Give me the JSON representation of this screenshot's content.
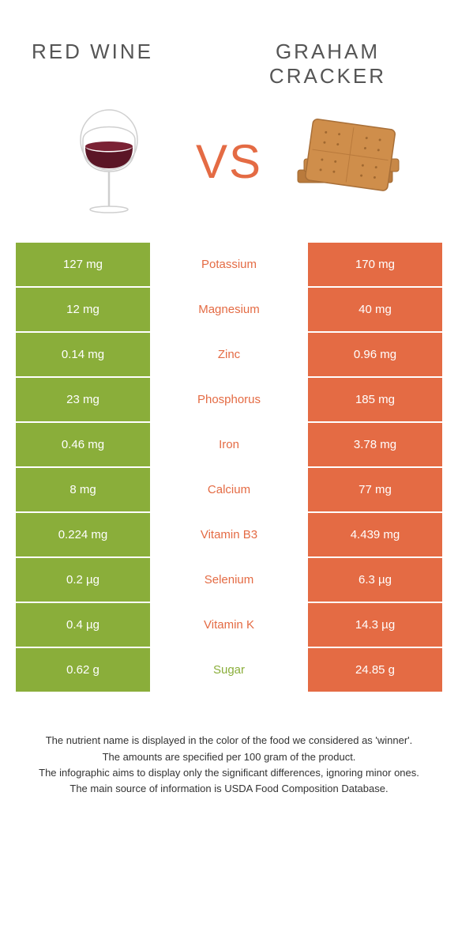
{
  "colors": {
    "left": "#8aae3a",
    "right": "#e46b44",
    "left_text": "#8aae3a",
    "right_text": "#e46b44",
    "vs_color": "#e46b44",
    "white": "#ffffff"
  },
  "titles": {
    "left": "Red Wine",
    "right_line1": "Graham",
    "right_line2": "Cracker"
  },
  "vs": "VS",
  "rows": [
    {
      "left": "127 mg",
      "label": "Potassium",
      "right": "170 mg",
      "winner": "right"
    },
    {
      "left": "12 mg",
      "label": "Magnesium",
      "right": "40 mg",
      "winner": "right"
    },
    {
      "left": "0.14 mg",
      "label": "Zinc",
      "right": "0.96 mg",
      "winner": "right"
    },
    {
      "left": "23 mg",
      "label": "Phosphorus",
      "right": "185 mg",
      "winner": "right"
    },
    {
      "left": "0.46 mg",
      "label": "Iron",
      "right": "3.78 mg",
      "winner": "right"
    },
    {
      "left": "8 mg",
      "label": "Calcium",
      "right": "77 mg",
      "winner": "right"
    },
    {
      "left": "0.224 mg",
      "label": "Vitamin B3",
      "right": "4.439 mg",
      "winner": "right"
    },
    {
      "left": "0.2 µg",
      "label": "Selenium",
      "right": "6.3 µg",
      "winner": "right"
    },
    {
      "left": "0.4 µg",
      "label": "Vitamin K",
      "right": "14.3 µg",
      "winner": "right"
    },
    {
      "left": "0.62 g",
      "label": "Sugar",
      "right": "24.85 g",
      "winner": "left"
    }
  ],
  "footnotes": [
    "The nutrient name is displayed in the color of the food we considered as 'winner'.",
    "The amounts are specified per 100 gram of the product.",
    "The infographic aims to display only the significant differences, ignoring minor ones.",
    "The main source of information is USDA Food Composition Database."
  ]
}
